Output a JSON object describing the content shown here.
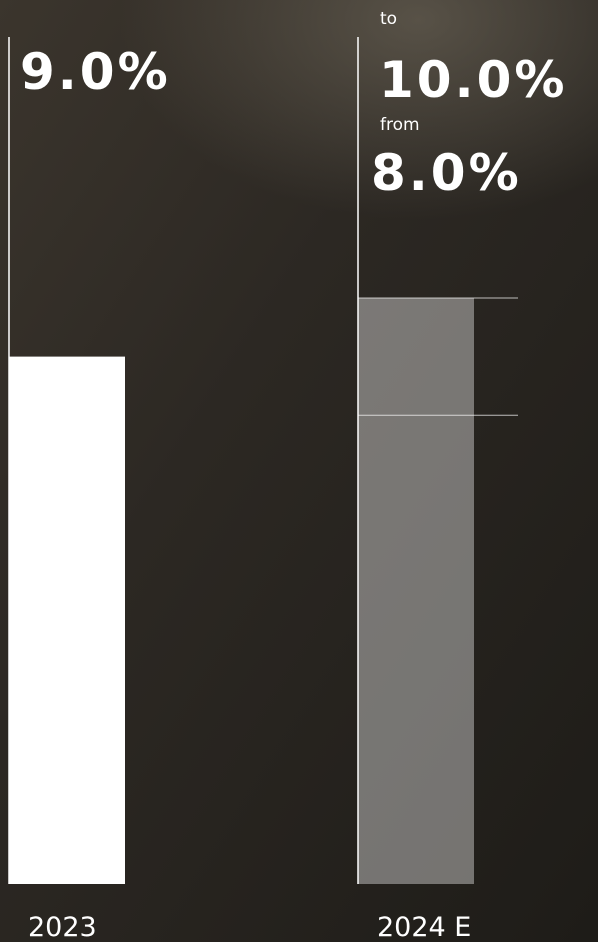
{
  "chart_data": {
    "type": "range_bar",
    "bars": [
      {
        "category": "2023",
        "value": 9.0,
        "value_label": "9.0%"
      },
      {
        "category": "2024 E",
        "low": 8.0,
        "low_label": "8.0%",
        "low_prefix": "from",
        "high": 10.0,
        "high_label": "10.0%",
        "high_prefix": "to"
      }
    ]
  }
}
